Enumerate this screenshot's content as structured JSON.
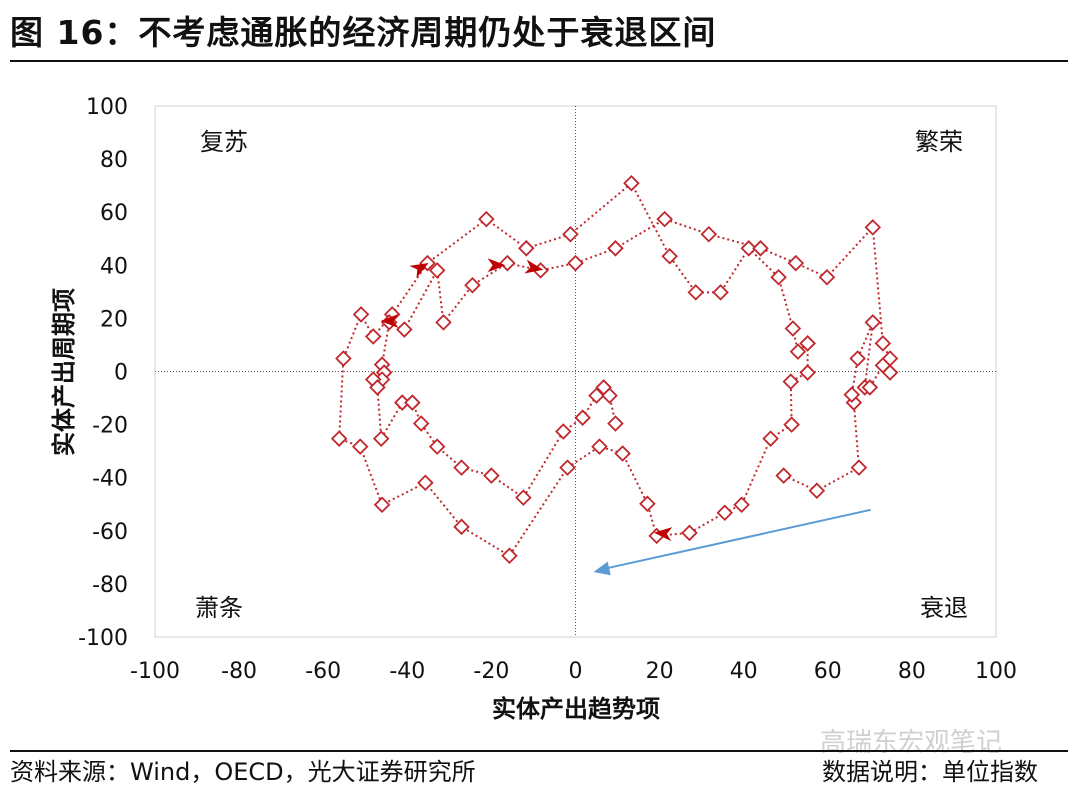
{
  "title": "图 16：不考虑通胀的经济周期仍处于衰退区间",
  "footer": {
    "source": "资料来源：Wind，OECD，光大证券研究所",
    "note": "数据说明：单位指数",
    "watermark": "高瑞东宏观笔记"
  },
  "chart_data": {
    "type": "scatter",
    "xlabel": "实体产出趋势项",
    "ylabel": "实体产出周期项",
    "xlim": [
      -100,
      100
    ],
    "ylim": [
      -100,
      100
    ],
    "xticks": [
      -100,
      -80,
      -60,
      -40,
      -20,
      0,
      20,
      40,
      60,
      80,
      100
    ],
    "yticks": [
      100,
      80,
      60,
      40,
      20,
      0,
      -20,
      -40,
      -60,
      -80,
      -100
    ],
    "grid": false,
    "quadrant_labels": {
      "top_left": "复苏",
      "top_right": "繁荣",
      "bottom_left": "萧条",
      "bottom_right": "衰退"
    },
    "colors": {
      "series": "#c0282d",
      "trend_arrow": "#5b9bd5",
      "axis_cross": "#555555"
    },
    "marker": "diamond-open",
    "line_style": "dotted",
    "series": [
      {
        "values": [
          [
            55.2,
            10.6
          ],
          [
            52.9,
            7.5
          ],
          [
            51.7,
            16.2
          ],
          [
            48.3,
            35.5
          ],
          [
            41.2,
            46.4
          ],
          [
            34.5,
            29.8
          ],
          [
            28.6,
            29.8
          ],
          [
            22.4,
            43.4
          ],
          [
            13.3,
            70.9
          ],
          [
            -1.2,
            51.7
          ],
          [
            -11.7,
            46.4
          ],
          [
            -21.2,
            57.4
          ],
          [
            -35.2,
            40.8
          ],
          [
            -43.6,
            21.5
          ],
          [
            -48.1,
            13.2
          ],
          [
            -51.0,
            21.5
          ],
          [
            -55.2,
            4.9
          ],
          [
            -56.2,
            -25.3
          ],
          [
            -51.2,
            -28.3
          ],
          [
            -46.0,
            -50.2
          ],
          [
            -35.7,
            -41.9
          ],
          [
            -27.1,
            -58.5
          ],
          [
            -15.7,
            -69.4
          ],
          [
            -1.9,
            -36.2
          ],
          [
            5.7,
            -28.3
          ],
          [
            11.2,
            -30.9
          ],
          [
            17.1,
            -49.8
          ],
          [
            19.3,
            -61.9
          ],
          [
            27.1,
            -60.8
          ],
          [
            35.5,
            -53.2
          ],
          [
            39.5,
            -50.2
          ],
          [
            46.4,
            -25.3
          ],
          [
            51.4,
            -20.0
          ],
          [
            51.2,
            -3.8
          ],
          [
            55.2,
            -0.4
          ],
          [
            55.2,
            10.6
          ]
        ]
      },
      {
        "values": [
          [
            49.5,
            -39.2
          ],
          [
            57.4,
            -44.9
          ],
          [
            67.4,
            -36.2
          ],
          [
            66.2,
            -11.7
          ],
          [
            65.7,
            -8.7
          ],
          [
            67.1,
            4.9
          ],
          [
            70.7,
            18.5
          ],
          [
            68.8,
            -6.0
          ],
          [
            70.0,
            -6.0
          ],
          [
            73.1,
            2.3
          ],
          [
            74.8,
            -0.4
          ],
          [
            74.8,
            4.9
          ],
          [
            73.1,
            10.6
          ],
          [
            70.7,
            54.3
          ],
          [
            59.8,
            35.5
          ],
          [
            52.4,
            40.8
          ],
          [
            44.0,
            46.4
          ],
          [
            31.7,
            51.7
          ],
          [
            21.2,
            57.4
          ],
          [
            9.5,
            46.4
          ],
          [
            0,
            40.8
          ],
          [
            -8.3,
            38.1
          ],
          [
            -16.2,
            40.8
          ],
          [
            -24.5,
            32.5
          ],
          [
            -31.4,
            18.5
          ],
          [
            -32.9,
            38.1
          ],
          [
            -40.7,
            15.8
          ],
          [
            -44.3,
            18.5
          ],
          [
            -46.0,
            2.6
          ],
          [
            -45.5,
            -0.4
          ],
          [
            -46.0,
            -3.0
          ],
          [
            -48.1,
            -3.0
          ],
          [
            -47.1,
            -6.0
          ],
          [
            -46.2,
            -25.3
          ],
          [
            -41.2,
            -11.7
          ],
          [
            -38.8,
            -11.7
          ],
          [
            -36.7,
            -19.6
          ],
          [
            -32.9,
            -28.3
          ],
          [
            -27.1,
            -36.2
          ],
          [
            -20.0,
            -39.2
          ],
          [
            -12.4,
            -47.5
          ],
          [
            -2.9,
            -22.6
          ],
          [
            1.7,
            -17.4
          ],
          [
            5.0,
            -9.1
          ],
          [
            6.7,
            -6.0
          ],
          [
            8.1,
            -9.1
          ],
          [
            9.5,
            -19.6
          ]
        ]
      }
    ],
    "direction_arrows": [
      {
        "at": [
          -37,
          39
        ],
        "angle": -30
      },
      {
        "at": [
          -19,
          40
        ],
        "angle": 0
      },
      {
        "at": [
          -10,
          39
        ],
        "angle": 10
      },
      {
        "at": [
          -44,
          19
        ],
        "angle": 180
      },
      {
        "at": [
          21,
          -61
        ],
        "angle": 185
      }
    ],
    "trend_arrow": {
      "from": [
        70.2,
        -52.1
      ],
      "to": [
        4.3,
        -75.5
      ]
    }
  }
}
